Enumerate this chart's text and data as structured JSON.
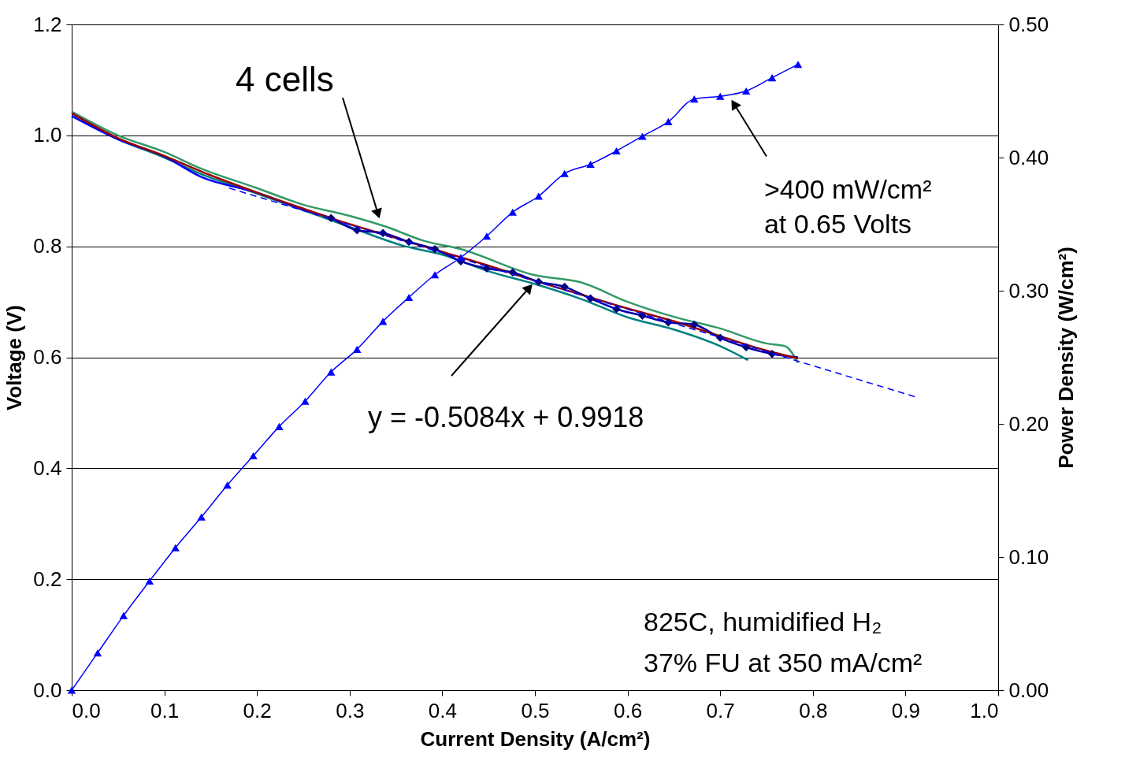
{
  "chart_data": {
    "type": "line",
    "xlabel": "Current Density (A/cm²)",
    "ylabel": "Voltage (V)",
    "y2label": "Power Density (W/cm²)",
    "xlim": [
      0,
      1.0
    ],
    "ylim": [
      0,
      1.2
    ],
    "y2lim": [
      0,
      0.5
    ],
    "xticks": [
      {
        "value": 0,
        "label": "0.0"
      },
      0.1,
      0.2,
      0.3,
      0.4,
      0.5,
      0.6,
      0.7,
      0.8,
      0.9,
      {
        "value": 1.0,
        "label": "1.0"
      }
    ],
    "yticks": [
      {
        "value": 0,
        "label": "0.0"
      },
      0.2,
      0.4,
      0.6,
      0.8,
      {
        "value": 1.0,
        "label": "1.0"
      },
      1.2
    ],
    "y2ticks": [
      {
        "value": 0,
        "label": "0.00"
      },
      {
        "value": 0.1,
        "label": "0.10"
      },
      {
        "value": 0.2,
        "label": "0.20"
      },
      {
        "value": 0.3,
        "label": "0.30"
      },
      {
        "value": 0.4,
        "label": "0.40"
      },
      {
        "value": 0.5,
        "label": "0.50"
      }
    ],
    "grid": "y",
    "series": [
      {
        "color": "#339966",
        "marker": "none",
        "x": [
          0,
          0.05,
          0.1,
          0.14,
          0.2,
          0.25,
          0.3,
          0.34,
          0.38,
          0.42,
          0.5,
          0.55,
          0.6,
          0.65,
          0.7,
          0.75,
          0.77,
          0.784
        ],
        "values": [
          1.043,
          1.0,
          0.97,
          0.94,
          0.905,
          0.875,
          0.855,
          0.835,
          0.81,
          0.795,
          0.748,
          0.735,
          0.7,
          0.673,
          0.652,
          0.625,
          0.62,
          0.59
        ]
      },
      {
        "color": "#008080",
        "marker": "none",
        "x": [
          0,
          0.05,
          0.1,
          0.14,
          0.2,
          0.25,
          0.3,
          0.36,
          0.4,
          0.45,
          0.5,
          0.55,
          0.6,
          0.65,
          0.7,
          0.73
        ],
        "values": [
          1.035,
          0.993,
          0.96,
          0.93,
          0.895,
          0.865,
          0.835,
          0.8,
          0.785,
          0.755,
          0.732,
          0.705,
          0.672,
          0.65,
          0.62,
          0.595
        ]
      },
      {
        "color": "#0000ff",
        "marker": "none",
        "x": [
          0,
          0.05,
          0.1,
          0.14,
          0.2,
          0.25,
          0.28,
          0.308,
          0.336,
          0.364,
          0.392,
          0.42,
          0.448,
          0.476,
          0.504,
          0.532,
          0.56,
          0.588,
          0.616,
          0.644,
          0.672,
          0.7,
          0.728,
          0.756,
          0.784
        ],
        "values": [
          1.035,
          0.993,
          0.962,
          0.925,
          0.897,
          0.866,
          0.851,
          0.829,
          0.824,
          0.808,
          0.795,
          0.773,
          0.76,
          0.753,
          0.736,
          0.727,
          0.706,
          0.687,
          0.675,
          0.663,
          0.659,
          0.635,
          0.618,
          0.606,
          0.6
        ]
      },
      {
        "color": "#990000",
        "marker": "none",
        "x": [
          0,
          0.05,
          0.1,
          0.15,
          0.2,
          0.25,
          0.3,
          0.35,
          0.4,
          0.45,
          0.5,
          0.55,
          0.6,
          0.65,
          0.7,
          0.75,
          0.784
        ],
        "values": [
          1.04,
          0.995,
          0.963,
          0.928,
          0.897,
          0.868,
          0.84,
          0.815,
          0.79,
          0.765,
          0.738,
          0.713,
          0.688,
          0.665,
          0.638,
          0.612,
          0.598
        ]
      },
      {
        "color": "#000080",
        "marker": "diamond",
        "x": [
          0.28,
          0.308,
          0.336,
          0.364,
          0.392,
          0.42,
          0.448,
          0.476,
          0.504,
          0.532,
          0.56,
          0.588,
          0.616,
          0.644,
          0.672,
          0.7,
          0.728,
          0.756
        ],
        "values": [
          0.851,
          0.829,
          0.824,
          0.808,
          0.795,
          0.773,
          0.76,
          0.753,
          0.736,
          0.727,
          0.706,
          0.687,
          0.675,
          0.663,
          0.659,
          0.635,
          0.618,
          0.606
        ]
      },
      {
        "color": "#0000ff",
        "marker": "none",
        "line_style": "dashed",
        "x": [
          0.17,
          0.91
        ],
        "values": [
          0.905,
          0.529
        ]
      },
      {
        "axis": "y2",
        "color": "#0000ff",
        "marker": "triangle",
        "x": [
          0,
          0.028,
          0.056,
          0.084,
          0.112,
          0.14,
          0.168,
          0.196,
          0.224,
          0.252,
          0.28,
          0.308,
          0.336,
          0.364,
          0.392,
          0.42,
          0.448,
          0.476,
          0.504,
          0.532,
          0.56,
          0.588,
          0.616,
          0.644,
          0.672,
          0.7,
          0.728,
          0.756,
          0.784
        ],
        "values": [
          0,
          0.028,
          0.056,
          0.082,
          0.107,
          0.13,
          0.154,
          0.176,
          0.198,
          0.217,
          0.239,
          0.256,
          0.277,
          0.295,
          0.312,
          0.325,
          0.341,
          0.359,
          0.371,
          0.388,
          0.395,
          0.405,
          0.416,
          0.427,
          0.444,
          0.446,
          0.45,
          0.46,
          0.47
        ]
      }
    ],
    "annotations": [
      "4 cells",
      {
        "text": "y = -0.5084x + 0.9918",
        "x": 0.5,
        "y": 0.737
      },
      {
        "text": ">400 mW/cm²\nat 0.65 Volts",
        "x": 0.71,
        "y": 1.07
      },
      "825C, humidified H₂",
      "37% FU at 350 mA/cm²"
    ]
  }
}
